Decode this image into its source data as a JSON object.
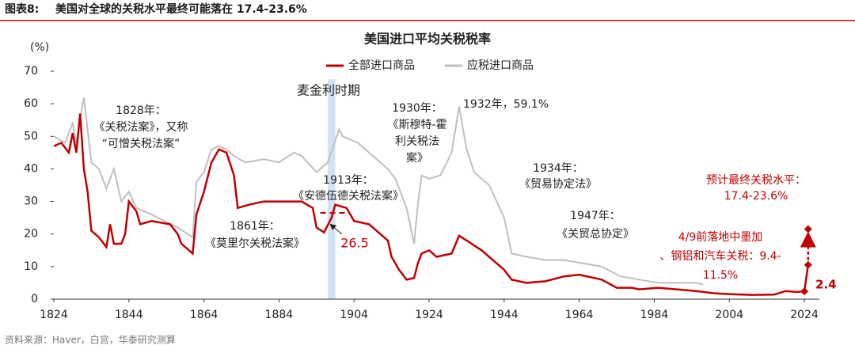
{
  "chart_data": {
    "type": "line",
    "figure_label": "图表8:",
    "headline": "美国对全球的关税水平最终可能落在 17.4-23.6%",
    "title": "美国进口平均关税税率",
    "y_unit": "(%)",
    "source": "资料来源：Haver，白宫，华泰研究测算",
    "xlim": [
      1824,
      2028
    ],
    "xticks": [
      1824,
      1844,
      1864,
      1884,
      1904,
      1924,
      1944,
      1964,
      1984,
      2004,
      2024
    ],
    "ylim": [
      0,
      70
    ],
    "yticks": [
      0,
      10,
      20,
      30,
      40,
      50,
      60,
      70
    ],
    "legend": "top",
    "series": [
      {
        "name": "全部进口商品",
        "color": "#c00000",
        "x": [
          1824,
          1826,
          1828,
          1829,
          1830,
          1831,
          1832,
          1833,
          1834,
          1836,
          1838,
          1839,
          1840,
          1842,
          1843,
          1844,
          1846,
          1847,
          1850,
          1855,
          1857,
          1858,
          1861,
          1862,
          1864,
          1866,
          1868,
          1870,
          1872,
          1873,
          1876,
          1880,
          1884,
          1888,
          1890,
          1893,
          1894,
          1896,
          1898,
          1899,
          1902,
          1904,
          1908,
          1911,
          1913,
          1914,
          1916,
          1918,
          1920,
          1921,
          1922,
          1924,
          1926,
          1930,
          1932,
          1934,
          1938,
          1940,
          1942,
          1944,
          1946,
          1950,
          1955,
          1960,
          1964,
          1970,
          1974,
          1978,
          1980,
          1985,
          1990,
          1995,
          2000,
          2005,
          2010,
          2016,
          2019,
          2022,
          2024
        ],
        "values": [
          47,
          48,
          45,
          51,
          45,
          57,
          40,
          33,
          21,
          19,
          16,
          23,
          17,
          17,
          20,
          30,
          27,
          23,
          24,
          23,
          20,
          17,
          14,
          26,
          33,
          42,
          46,
          45,
          38,
          28,
          29,
          30,
          30,
          30,
          30,
          28,
          22,
          20.5,
          25,
          29,
          28,
          24,
          23,
          20,
          18,
          13,
          9,
          6,
          6.5,
          11,
          14,
          15,
          13,
          14,
          19.5,
          18,
          15,
          13,
          11,
          9,
          6,
          5,
          5.5,
          7,
          7.5,
          6,
          3.5,
          3.5,
          3,
          3.5,
          3,
          2.5,
          1.8,
          1.5,
          1.3,
          1.4,
          2.5,
          2.2,
          2.4
        ]
      },
      {
        "name": "应税进口商品",
        "color": "#bfbfbf",
        "x": [
          1824,
          1827,
          1829,
          1830,
          1832,
          1834,
          1836,
          1838,
          1840,
          1842,
          1844,
          1846,
          1850,
          1857,
          1861,
          1862,
          1864,
          1866,
          1868,
          1870,
          1872,
          1875,
          1880,
          1884,
          1888,
          1890,
          1894,
          1897,
          1900,
          1901,
          1905,
          1910,
          1913,
          1915,
          1918,
          1920,
          1921,
          1922,
          1924,
          1927,
          1930,
          1932,
          1934,
          1936,
          1938,
          1940,
          1944,
          1946,
          1950,
          1955,
          1960,
          1965,
          1970,
          1975,
          1980,
          1985,
          1990,
          1995,
          1997
        ],
        "values": [
          50,
          48,
          54,
          48,
          62,
          42,
          40,
          34,
          40,
          30,
          33,
          28,
          26,
          22,
          19,
          36,
          39,
          46,
          47,
          46,
          44,
          42,
          43,
          42,
          45,
          44,
          39,
          42,
          52,
          50,
          48,
          43,
          40,
          37,
          28,
          17,
          29,
          38,
          37,
          38,
          45,
          59.1,
          46,
          39,
          37,
          35,
          25,
          14,
          13,
          12,
          12,
          11,
          10,
          7,
          6,
          5,
          5,
          5,
          4.5
        ]
      }
    ],
    "forecast": {
      "x": [
        2024,
        2025,
        2025
      ],
      "values": [
        2.4,
        10.5,
        21.5
      ],
      "value_labels": [
        "2.4",
        null,
        null
      ]
    },
    "shaded_region": {
      "label": "麦金利时期",
      "x": [
        1897,
        1899
      ]
    },
    "reference": {
      "value": 26.5,
      "x": [
        1895,
        1903
      ]
    },
    "annotations": [
      {
        "lines": [
          "1828年：",
          "《关税法案》，又称",
          "“可憎关税法案”"
        ]
      },
      {
        "lines": [
          "1861年：",
          "《莫里尔关税法案》"
        ]
      },
      {
        "lines": [
          "1913年：",
          "《安德伍德关税法案》"
        ]
      },
      {
        "lines": [
          "1930年：",
          "《斯穆特-霍",
          "利关税法",
          "案》"
        ]
      },
      {
        "lines": [
          "1932年，59.1%"
        ]
      },
      {
        "lines": [
          "1934年：",
          "《贸易协定法》"
        ]
      },
      {
        "lines": [
          "1947年：",
          "《关贸总协定》"
        ]
      },
      {
        "lines": [
          "预计最终关税水平：",
          "17.4-23.6%"
        ]
      },
      {
        "lines": [
          "4/9前落地中墨加",
          "、钢铝和汽车关税：9.4-",
          "11.5%"
        ]
      }
    ]
  }
}
